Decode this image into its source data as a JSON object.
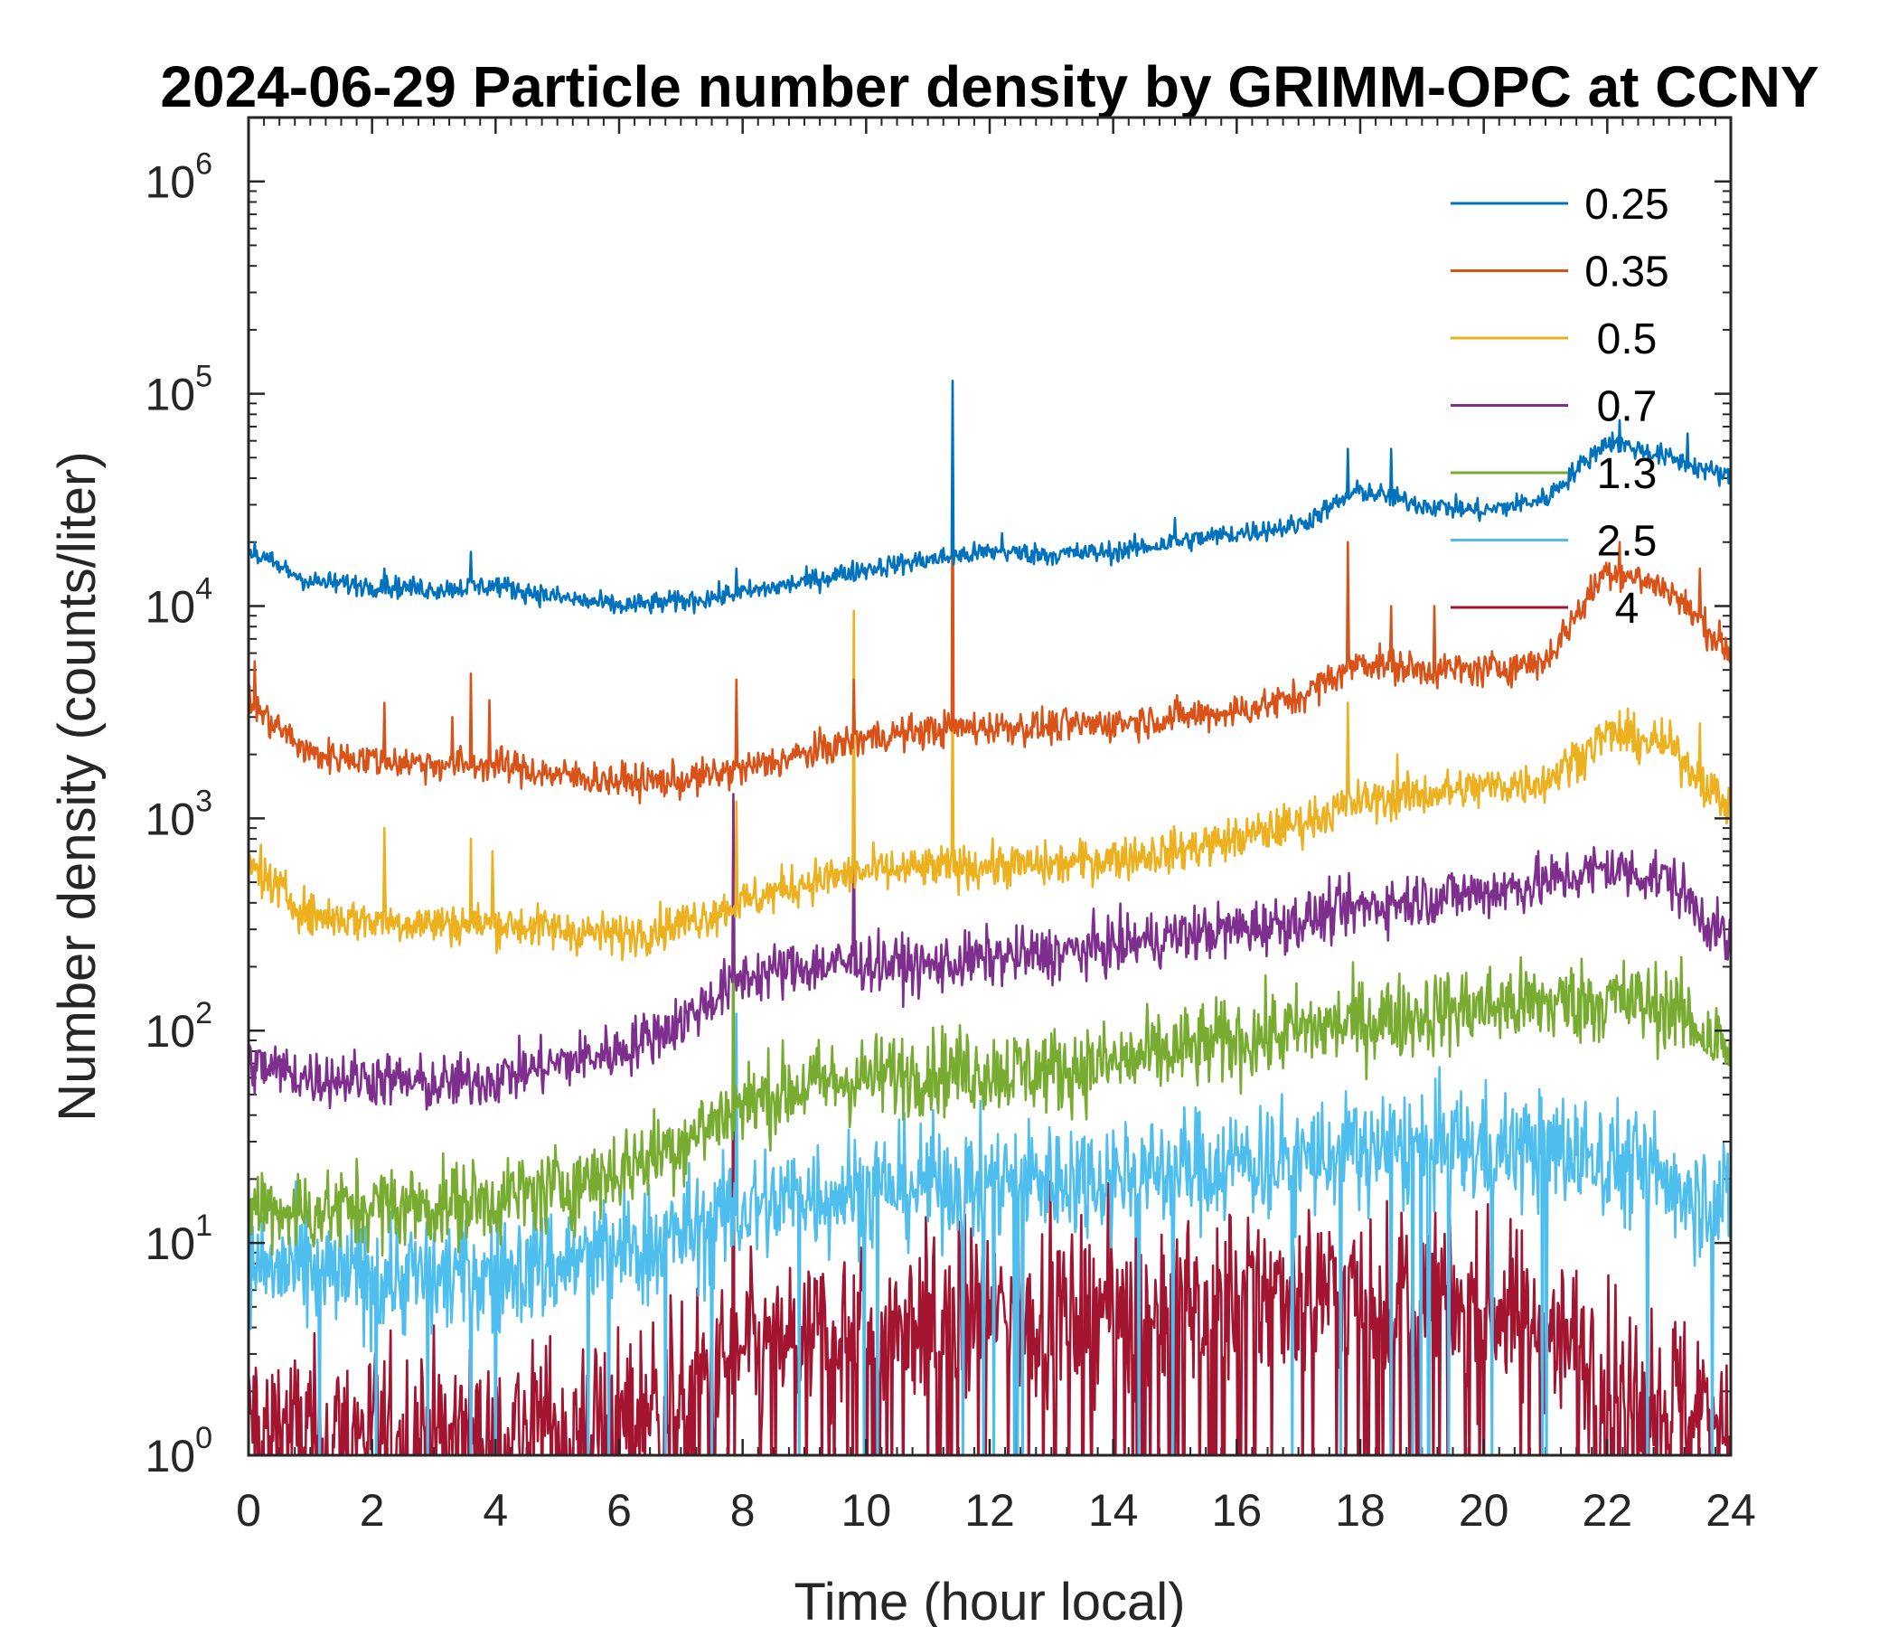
{
  "chart_data": {
    "type": "line",
    "title": "2024-06-29 Particle number density by GRIMM-OPC at CCNY",
    "xlabel": "Time (hour local)",
    "ylabel": "Number density (counts/liter)",
    "xlim": [
      0,
      24
    ],
    "ylim": [
      1,
      2000000
    ],
    "yscale": "log",
    "x_ticks": [
      0,
      2,
      4,
      6,
      8,
      10,
      12,
      14,
      16,
      18,
      20,
      22,
      24
    ],
    "y_ticks": [
      {
        "base": "10",
        "exp": "0",
        "value": 1
      },
      {
        "base": "10",
        "exp": "1",
        "value": 10
      },
      {
        "base": "10",
        "exp": "2",
        "value": 100
      },
      {
        "base": "10",
        "exp": "3",
        "value": 1000
      },
      {
        "base": "10",
        "exp": "4",
        "value": 10000
      },
      {
        "base": "10",
        "exp": "5",
        "value": 100000
      },
      {
        "base": "10",
        "exp": "6",
        "value": 1000000
      }
    ],
    "legend_position": "top-right",
    "x": [
      0,
      1,
      2,
      3,
      4,
      5,
      6,
      7,
      8,
      9,
      10,
      11,
      12,
      13,
      14,
      15,
      16,
      17,
      18,
      19,
      20,
      21,
      22,
      23,
      24
    ],
    "series": [
      {
        "name": "0.25",
        "color": "#0072BD",
        "noise": 0.05,
        "values": [
          18000,
          13000,
          12500,
          12000,
          12500,
          11000,
          10000,
          10500,
          11500,
          13000,
          15000,
          16500,
          18000,
          17500,
          18000,
          20000,
          22000,
          24000,
          35000,
          30000,
          28000,
          32000,
          60000,
          50000,
          40000
        ],
        "spikes": [
          [
            0.1,
            20000
          ],
          [
            2.2,
            15000
          ],
          [
            3.6,
            18000
          ],
          [
            7.9,
            15000
          ],
          [
            11.4,
            115000
          ],
          [
            12.2,
            22000
          ],
          [
            15,
            26000
          ],
          [
            17.8,
            55000
          ],
          [
            18.5,
            55000
          ],
          [
            22.2,
            75000
          ],
          [
            23.3,
            65000
          ]
        ]
      },
      {
        "name": "0.35",
        "color": "#D95319",
        "noise": 0.08,
        "values": [
          3500,
          2000,
          1900,
          1800,
          1800,
          1600,
          1500,
          1500,
          1700,
          2000,
          2400,
          2600,
          2700,
          2700,
          2800,
          3000,
          3200,
          3700,
          5500,
          5000,
          5000,
          5500,
          15000,
          12000,
          6000
        ],
        "spikes": [
          [
            0.1,
            5500
          ],
          [
            2.2,
            3500
          ],
          [
            3.3,
            3000
          ],
          [
            3.6,
            4800
          ],
          [
            3.9,
            3600
          ],
          [
            7.9,
            4500
          ],
          [
            9.8,
            4500
          ],
          [
            11.4,
            70000
          ],
          [
            17.8,
            20000
          ],
          [
            18.5,
            10000
          ],
          [
            19.2,
            10000
          ],
          [
            22.2,
            20000
          ],
          [
            23.5,
            15000
          ]
        ]
      },
      {
        "name": "0.5",
        "color": "#EDB120",
        "noise": 0.1,
        "values": [
          600,
          350,
          330,
          320,
          320,
          300,
          280,
          320,
          400,
          500,
          560,
          580,
          600,
          600,
          650,
          700,
          800,
          950,
          1200,
          1300,
          1400,
          1500,
          2500,
          2200,
          1100
        ],
        "spikes": [
          [
            0.2,
            750
          ],
          [
            2.2,
            900
          ],
          [
            3.6,
            800
          ],
          [
            3.95,
            700
          ],
          [
            7.9,
            1200
          ],
          [
            9.8,
            9500
          ],
          [
            11.4,
            4500
          ],
          [
            15.5,
            900
          ],
          [
            17.8,
            3500
          ],
          [
            18.6,
            2000
          ],
          [
            22.2,
            3200
          ],
          [
            23.5,
            2800
          ]
        ]
      },
      {
        "name": "0.7",
        "color": "#7E2F8E",
        "noise": 0.13,
        "values": [
          70,
          60,
          60,
          55,
          60,
          70,
          80,
          110,
          180,
          200,
          210,
          200,
          220,
          230,
          250,
          280,
          300,
          330,
          380,
          420,
          450,
          500,
          580,
          520,
          250
        ],
        "spikes": [
          [
            7.85,
            1300
          ],
          [
            9.8,
            1300
          ],
          [
            18.2,
            450
          ],
          [
            22,
            700
          ]
        ]
      },
      {
        "name": "1.3",
        "color": "#77AC30",
        "noise": 0.2,
        "values": [
          15,
          14,
          15,
          15,
          16,
          18,
          22,
          30,
          45,
          55,
          60,
          65,
          65,
          65,
          70,
          80,
          90,
          100,
          110,
          120,
          130,
          135,
          140,
          130,
          80
        ],
        "spikes": [
          [
            7.85,
            280
          ]
        ]
      },
      {
        "name": "2.5",
        "color": "#4DBEEE",
        "noise": 0.28,
        "values": [
          8,
          7,
          7,
          7,
          7,
          8,
          9,
          11,
          14,
          17,
          18,
          19,
          20,
          20,
          21,
          22,
          24,
          25,
          27,
          28,
          28,
          28,
          25,
          20,
          15
        ],
        "spikes": [
          [
            7.9,
            120
          ]
        ]
      },
      {
        "name": "4",
        "color": "#A2142F",
        "noise": 0.4,
        "values": [
          1.5,
          1.3,
          1.3,
          1.3,
          1.3,
          1.4,
          1.5,
          2,
          3,
          3.5,
          4,
          4.5,
          4.8,
          5,
          5.2,
          5.5,
          5.8,
          6,
          6,
          5.5,
          5,
          4,
          2.5,
          2,
          1.5
        ],
        "spikes": [
          [
            7.85,
            1200
          ]
        ]
      }
    ]
  }
}
